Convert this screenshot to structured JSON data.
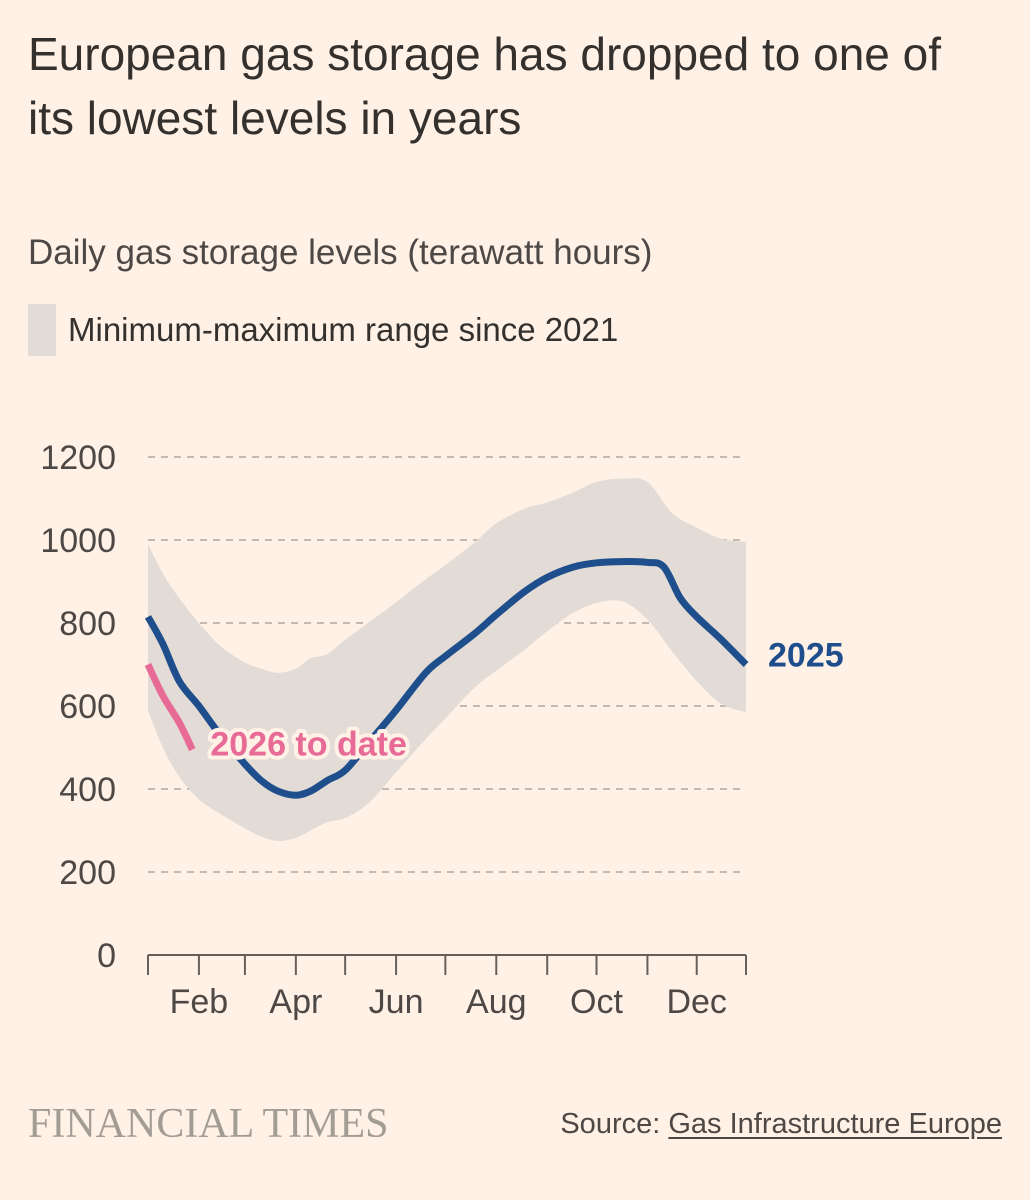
{
  "title": "European gas storage has dropped to one of its lowest levels in years",
  "subtitle": "Daily gas storage levels (terawatt hours)",
  "legend": {
    "range_label": "Minimum-maximum range since 2021"
  },
  "footer": {
    "logo": "FINANCIAL TIMES",
    "source_prefix": "Source: ",
    "source_name": "Gas Infrastructure Europe"
  },
  "colors": {
    "background": "#fff1e5",
    "range": "#e3dcd6",
    "series_2025": "#1e4e8c",
    "series_2026": "#e86a97",
    "grid": "#c2bab3",
    "text": "#4d4845"
  },
  "chart_data": {
    "type": "line",
    "title": "Daily gas storage levels (terawatt hours)",
    "x_domain": [
      1,
      365
    ],
    "ylim": [
      0,
      1200
    ],
    "yticks": [
      0,
      200,
      400,
      600,
      800,
      1000,
      1200
    ],
    "ytick_labels": [
      "0",
      "200",
      "400",
      "600",
      "800",
      "1000",
      "1200"
    ],
    "xticks": [
      {
        "day": 1,
        "label": ""
      },
      {
        "day": 32,
        "label": "Feb"
      },
      {
        "day": 60,
        "label": ""
      },
      {
        "day": 91,
        "label": "Apr"
      },
      {
        "day": 121,
        "label": ""
      },
      {
        "day": 152,
        "label": "Jun"
      },
      {
        "day": 182,
        "label": ""
      },
      {
        "day": 213,
        "label": "Aug"
      },
      {
        "day": 244,
        "label": ""
      },
      {
        "day": 274,
        "label": "Oct"
      },
      {
        "day": 305,
        "label": ""
      },
      {
        "day": 335,
        "label": "Dec"
      },
      {
        "day": 365,
        "label": ""
      }
    ],
    "grid": true,
    "band": {
      "name": "Minimum-maximum range since 2021",
      "x": [
        1,
        10,
        20,
        32,
        45,
        60,
        70,
        80,
        91,
        100,
        110,
        121,
        135,
        152,
        170,
        182,
        200,
        213,
        230,
        244,
        260,
        274,
        290,
        305,
        320,
        335,
        350,
        365
      ],
      "min": [
        590,
        500,
        430,
        375,
        340,
        305,
        285,
        275,
        282,
        300,
        320,
        330,
        365,
        440,
        520,
        570,
        645,
        685,
        735,
        780,
        825,
        848,
        852,
        808,
        732,
        660,
        605,
        585
      ],
      "max": [
        990,
        920,
        860,
        800,
        745,
        705,
        690,
        680,
        690,
        715,
        725,
        760,
        800,
        850,
        905,
        940,
        995,
        1040,
        1075,
        1090,
        1115,
        1140,
        1148,
        1140,
        1065,
        1030,
        1003,
        995
      ]
    },
    "series": [
      {
        "name": "2025",
        "label": "2025",
        "x": [
          1,
          10,
          20,
          32,
          45,
          60,
          70,
          80,
          91,
          100,
          110,
          121,
          135,
          152,
          170,
          182,
          200,
          213,
          230,
          244,
          260,
          274,
          290,
          305,
          315,
          325,
          335,
          350,
          365
        ],
        "values": [
          815,
          750,
          660,
          600,
          530,
          460,
          420,
          395,
          385,
          395,
          420,
          445,
          510,
          590,
          680,
          720,
          775,
          820,
          875,
          910,
          935,
          945,
          948,
          946,
          935,
          860,
          815,
          760,
          700
        ]
      },
      {
        "name": "2026 to date",
        "label": "2026 to date",
        "x": [
          1,
          10,
          20,
          28
        ],
        "values": [
          700,
          625,
          560,
          495
        ]
      }
    ]
  }
}
